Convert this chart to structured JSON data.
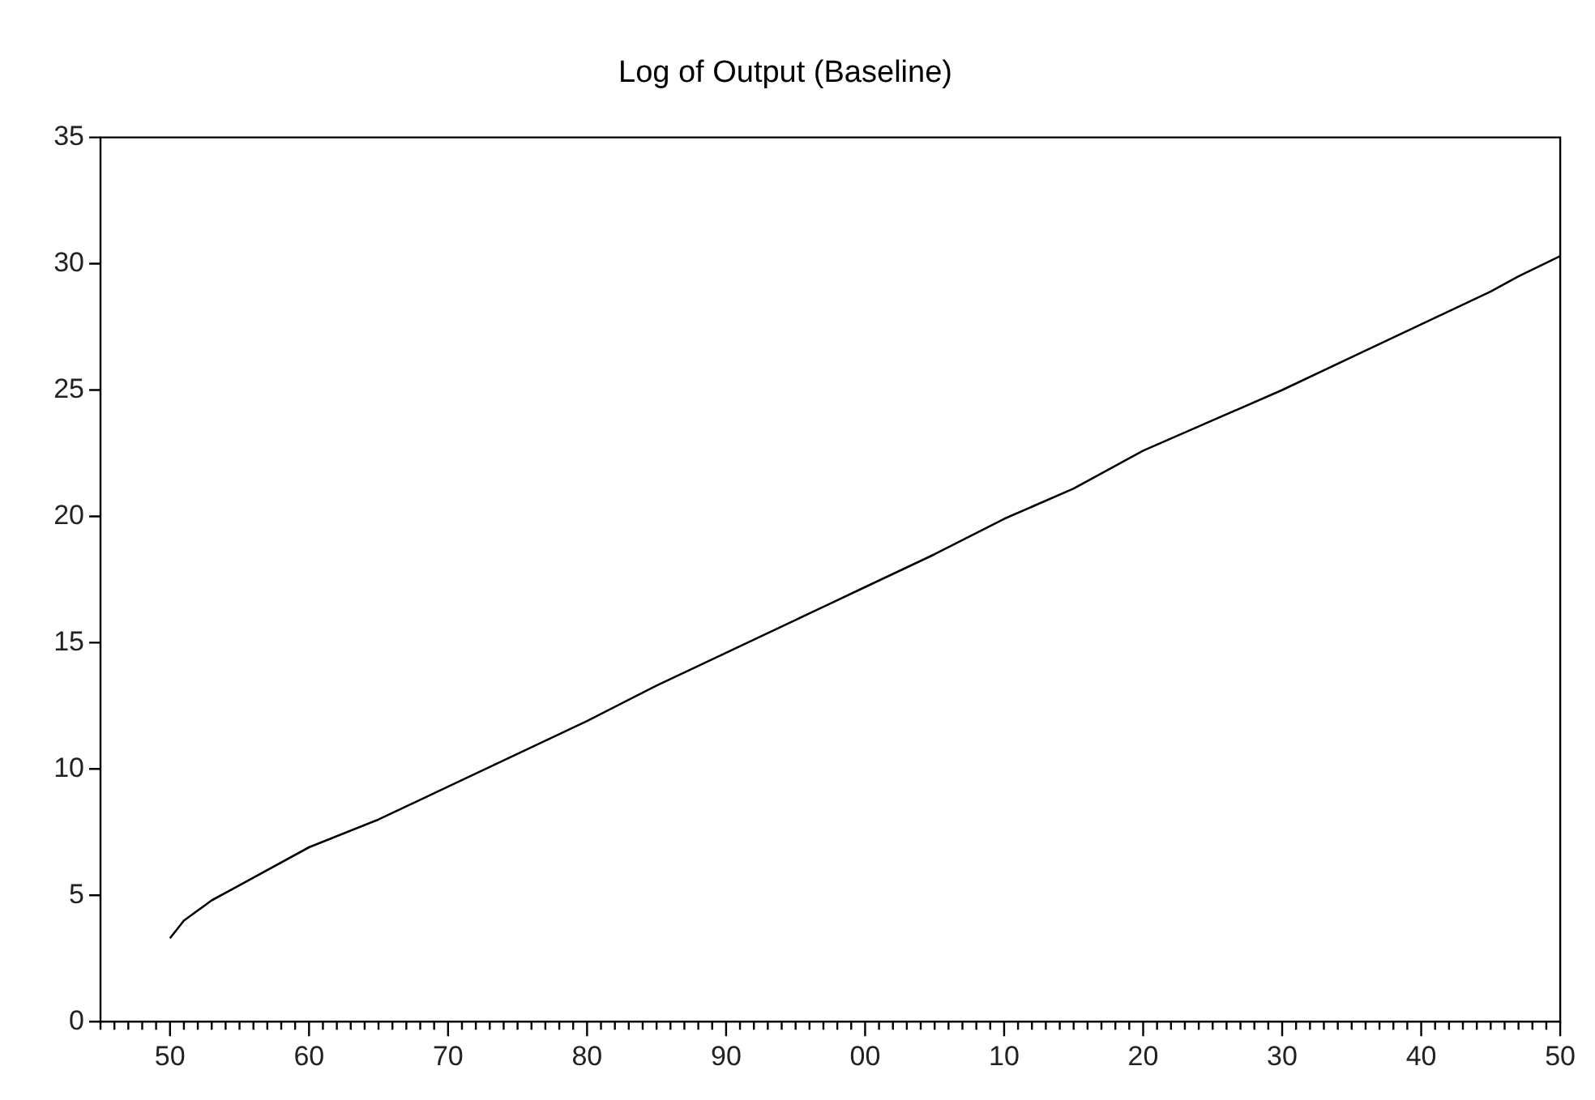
{
  "chart_data": {
    "type": "line",
    "title": "Log of Output (Baseline)",
    "x": [
      1950,
      1951,
      1952,
      1953,
      1955,
      1960,
      1965,
      1970,
      1975,
      1980,
      1985,
      1990,
      1995,
      2000,
      2005,
      2010,
      2015,
      2020,
      2025,
      2030,
      2035,
      2040,
      2045,
      2047,
      2050
    ],
    "series": [
      {
        "color": "#000000",
        "values": [
          3.3,
          4.0,
          4.4,
          4.8,
          5.4,
          6.9,
          8.0,
          9.3,
          10.6,
          11.9,
          13.3,
          14.6,
          15.9,
          17.2,
          18.5,
          19.9,
          21.1,
          22.6,
          23.8,
          25.0,
          26.3,
          27.6,
          28.9,
          29.5,
          30.3
        ]
      }
    ],
    "xlim": [
      1945,
      2050
    ],
    "xticks": [
      {
        "value": 1945,
        "label": null
      },
      {
        "value": 1946,
        "label": null
      },
      {
        "value": 1947,
        "label": null
      },
      {
        "value": 1948,
        "label": null
      },
      {
        "value": 1949,
        "label": null
      },
      {
        "value": 1950,
        "label": "50"
      },
      {
        "value": 1951,
        "label": null
      },
      {
        "value": 1952,
        "label": null
      },
      {
        "value": 1953,
        "label": null
      },
      {
        "value": 1954,
        "label": null
      },
      {
        "value": 1955,
        "label": null
      },
      {
        "value": 1956,
        "label": null
      },
      {
        "value": 1957,
        "label": null
      },
      {
        "value": 1958,
        "label": null
      },
      {
        "value": 1959,
        "label": null
      },
      {
        "value": 1960,
        "label": "60"
      },
      {
        "value": 1961,
        "label": null
      },
      {
        "value": 1962,
        "label": null
      },
      {
        "value": 1963,
        "label": null
      },
      {
        "value": 1964,
        "label": null
      },
      {
        "value": 1965,
        "label": null
      },
      {
        "value": 1966,
        "label": null
      },
      {
        "value": 1967,
        "label": null
      },
      {
        "value": 1968,
        "label": null
      },
      {
        "value": 1969,
        "label": null
      },
      {
        "value": 1970,
        "label": "70"
      },
      {
        "value": 1971,
        "label": null
      },
      {
        "value": 1972,
        "label": null
      },
      {
        "value": 1973,
        "label": null
      },
      {
        "value": 1974,
        "label": null
      },
      {
        "value": 1975,
        "label": null
      },
      {
        "value": 1976,
        "label": null
      },
      {
        "value": 1977,
        "label": null
      },
      {
        "value": 1978,
        "label": null
      },
      {
        "value": 1979,
        "label": null
      },
      {
        "value": 1980,
        "label": "80"
      },
      {
        "value": 1981,
        "label": null
      },
      {
        "value": 1982,
        "label": null
      },
      {
        "value": 1983,
        "label": null
      },
      {
        "value": 1984,
        "label": null
      },
      {
        "value": 1985,
        "label": null
      },
      {
        "value": 1986,
        "label": null
      },
      {
        "value": 1987,
        "label": null
      },
      {
        "value": 1988,
        "label": null
      },
      {
        "value": 1989,
        "label": null
      },
      {
        "value": 1990,
        "label": "90"
      },
      {
        "value": 1991,
        "label": null
      },
      {
        "value": 1992,
        "label": null
      },
      {
        "value": 1993,
        "label": null
      },
      {
        "value": 1994,
        "label": null
      },
      {
        "value": 1995,
        "label": null
      },
      {
        "value": 1996,
        "label": null
      },
      {
        "value": 1997,
        "label": null
      },
      {
        "value": 1998,
        "label": null
      },
      {
        "value": 1999,
        "label": null
      },
      {
        "value": 2000,
        "label": "00"
      },
      {
        "value": 2001,
        "label": null
      },
      {
        "value": 2002,
        "label": null
      },
      {
        "value": 2003,
        "label": null
      },
      {
        "value": 2004,
        "label": null
      },
      {
        "value": 2005,
        "label": null
      },
      {
        "value": 2006,
        "label": null
      },
      {
        "value": 2007,
        "label": null
      },
      {
        "value": 2008,
        "label": null
      },
      {
        "value": 2009,
        "label": null
      },
      {
        "value": 2010,
        "label": "10"
      },
      {
        "value": 2011,
        "label": null
      },
      {
        "value": 2012,
        "label": null
      },
      {
        "value": 2013,
        "label": null
      },
      {
        "value": 2014,
        "label": null
      },
      {
        "value": 2015,
        "label": null
      },
      {
        "value": 2016,
        "label": null
      },
      {
        "value": 2017,
        "label": null
      },
      {
        "value": 2018,
        "label": null
      },
      {
        "value": 2019,
        "label": null
      },
      {
        "value": 2020,
        "label": "20"
      },
      {
        "value": 2021,
        "label": null
      },
      {
        "value": 2022,
        "label": null
      },
      {
        "value": 2023,
        "label": null
      },
      {
        "value": 2024,
        "label": null
      },
      {
        "value": 2025,
        "label": null
      },
      {
        "value": 2026,
        "label": null
      },
      {
        "value": 2027,
        "label": null
      },
      {
        "value": 2028,
        "label": null
      },
      {
        "value": 2029,
        "label": null
      },
      {
        "value": 2030,
        "label": "30"
      },
      {
        "value": 2031,
        "label": null
      },
      {
        "value": 2032,
        "label": null
      },
      {
        "value": 2033,
        "label": null
      },
      {
        "value": 2034,
        "label": null
      },
      {
        "value": 2035,
        "label": null
      },
      {
        "value": 2036,
        "label": null
      },
      {
        "value": 2037,
        "label": null
      },
      {
        "value": 2038,
        "label": null
      },
      {
        "value": 2039,
        "label": null
      },
      {
        "value": 2040,
        "label": "40"
      },
      {
        "value": 2041,
        "label": null
      },
      {
        "value": 2042,
        "label": null
      },
      {
        "value": 2043,
        "label": null
      },
      {
        "value": 2044,
        "label": null
      },
      {
        "value": 2045,
        "label": null
      },
      {
        "value": 2046,
        "label": null
      },
      {
        "value": 2047,
        "label": null
      },
      {
        "value": 2048,
        "label": null
      },
      {
        "value": 2049,
        "label": null
      },
      {
        "value": 2050,
        "label": "50"
      }
    ],
    "ylim": [
      0,
      35
    ],
    "yticks": [
      0,
      5,
      10,
      15,
      20,
      25,
      30,
      35
    ]
  }
}
